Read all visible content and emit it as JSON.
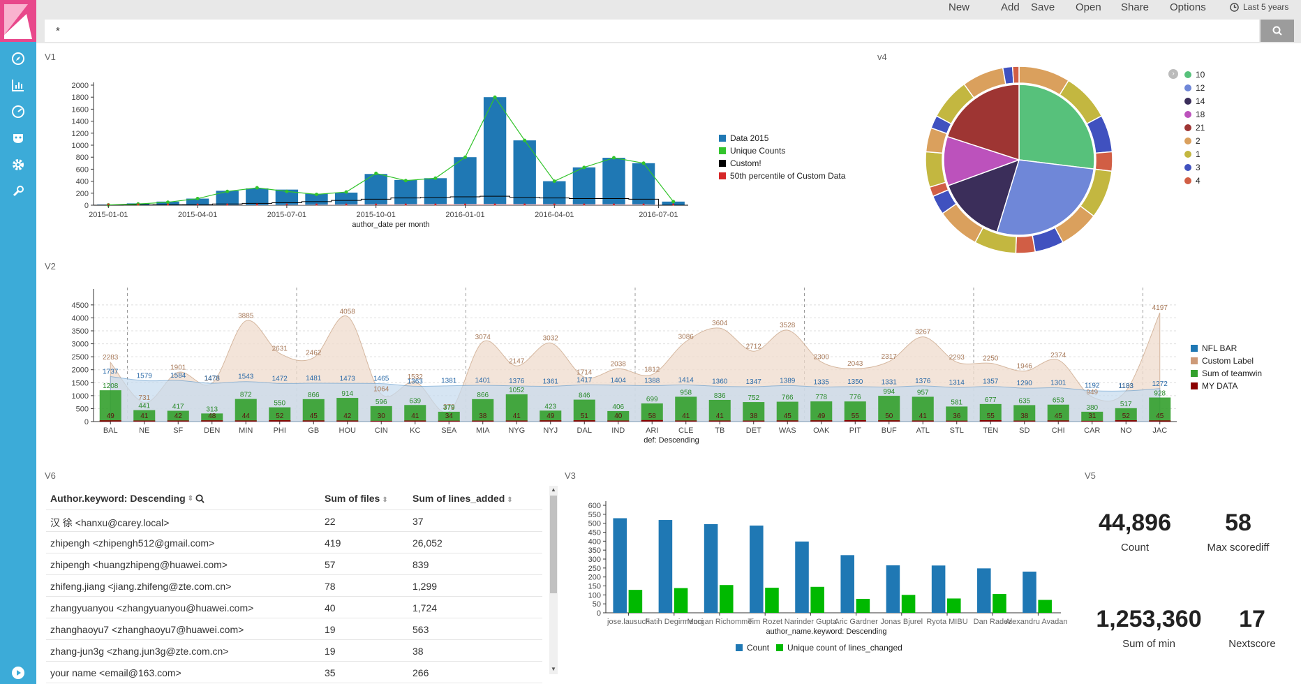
{
  "menu": {
    "new": "New",
    "add": "Add",
    "save": "Save",
    "open": "Open",
    "share": "Share",
    "options": "Options",
    "time": "Last 5 years"
  },
  "search": {
    "value": "*"
  },
  "colors": {
    "sidebar": "#3cabd8",
    "logo": "#e8488b",
    "blue": "#1f78b4",
    "green": "#33a02c",
    "bright_green": "#00b900",
    "tan": "#cd9a78",
    "red": "#d62728"
  },
  "panels": {
    "v1": "V1",
    "v2": "V2",
    "v3": "V3",
    "v4": "v4",
    "v5": "V5",
    "v6": "V6"
  },
  "v1": {
    "xlabel": "author_date per month",
    "ticks": [
      "2015-01-01",
      "2015-04-01",
      "2015-07-01",
      "2015-10-01",
      "2016-01-01",
      "2016-04-01",
      "2016-07-01"
    ],
    "yticks": [
      0,
      200,
      400,
      600,
      800,
      1000,
      1200,
      1400,
      1600,
      1800,
      2000
    ],
    "bars": [
      10,
      30,
      60,
      110,
      240,
      280,
      260,
      190,
      210,
      520,
      420,
      450,
      800,
      1800,
      1080,
      400,
      630,
      790,
      700,
      60
    ],
    "line": [
      5,
      20,
      50,
      110,
      230,
      290,
      230,
      180,
      220,
      530,
      410,
      450,
      800,
      1800,
      1080,
      400,
      630,
      790,
      700,
      60
    ],
    "custom": [
      0,
      5,
      8,
      10,
      20,
      30,
      40,
      60,
      80,
      100,
      120,
      130,
      140,
      150,
      130,
      120,
      110,
      110,
      100,
      0
    ],
    "legend": [
      "Data 2015",
      "Unique Counts",
      "Custom!",
      "50th percentile of Custom Data"
    ]
  },
  "v2": {
    "xlabel": "def: Descending",
    "teams": [
      "BAL",
      "NE",
      "SF",
      "DEN",
      "MIN",
      "PHI",
      "GB",
      "HOU",
      "CIN",
      "KC",
      "SEA",
      "MIA",
      "NYG",
      "NYJ",
      "DAL",
      "IND",
      "ARI",
      "CLE",
      "TB",
      "DET",
      "WAS",
      "OAK",
      "PIT",
      "BUF",
      "ATL",
      "STL",
      "TEN",
      "SD",
      "CHI",
      "CAR",
      "NO",
      "JAC"
    ],
    "yticks": [
      0,
      500,
      1000,
      1500,
      2000,
      2500,
      3000,
      3500,
      4000,
      4500
    ],
    "custom": [
      2283,
      731,
      1901,
      1473,
      3885,
      2631,
      2462,
      4058,
      1064,
      1532,
      379,
      3074,
      2147,
      3032,
      1714,
      2038,
      1812,
      3086,
      3604,
      2712,
      3528,
      2300,
      2043,
      2317,
      3267,
      2293,
      2250,
      1946,
      2374,
      949,
      1183,
      4197
    ],
    "nfl": [
      1737,
      1579,
      1584,
      1478,
      1543,
      1472,
      1481,
      1473,
      1465,
      1363,
      1381,
      1401,
      1376,
      1361,
      1417,
      1404,
      1388,
      1414,
      1360,
      1347,
      1389,
      1335,
      1350,
      1331,
      1376,
      1314,
      1357,
      1290,
      1301,
      1192,
      1183,
      1272
    ],
    "teamwin": [
      1208,
      441,
      417,
      313,
      872,
      550,
      866,
      914,
      596,
      639,
      379,
      866,
      1052,
      423,
      846,
      406,
      699,
      958,
      836,
      752,
      766,
      778,
      776,
      994,
      957,
      581,
      677,
      635,
      653,
      380,
      517,
      928
    ],
    "mydata": [
      49,
      41,
      42,
      48,
      44,
      52,
      45,
      42,
      30,
      41,
      34,
      38,
      41,
      49,
      51,
      40,
      58,
      41,
      41,
      38,
      45,
      49,
      55,
      50,
      41,
      36,
      55,
      38,
      45,
      31,
      52,
      45
    ],
    "legend": [
      "NFL BAR",
      "Custom Label",
      "Sum of teamwin",
      "MY DATA"
    ]
  },
  "v4": {
    "legend": [
      "10",
      "12",
      "14",
      "18",
      "21",
      "2",
      "1",
      "3",
      "4"
    ],
    "legend_colors": [
      "#57c17b",
      "#6f87d8",
      "#3b2e5a",
      "#bc52bc",
      "#9e3533",
      "#daa05d",
      "#c3b740",
      "#4051bf",
      "#d15e45"
    ]
  },
  "v6": {
    "headers": [
      "Author.keyword: Descending",
      "Sum of files",
      "Sum of lines_added"
    ],
    "rows": [
      [
        "汉 徐 <hanxu@carey.local>",
        "22",
        "37"
      ],
      [
        "zhipengh <zhipengh512@gmail.com>",
        "419",
        "26,052"
      ],
      [
        "zhipengh <huangzhipeng@huawei.com>",
        "57",
        "839"
      ],
      [
        "zhifeng.jiang <jiang.zhifeng@zte.com.cn>",
        "78",
        "1,299"
      ],
      [
        "zhangyuanyou <zhangyuanyou@huawei.com>",
        "40",
        "1,724"
      ],
      [
        "zhanghaoyu7 <zhanghaoyu7@huawei.com>",
        "19",
        "563"
      ],
      [
        "zhang-jun3g <zhang.jun3g@zte.com.cn>",
        "19",
        "38"
      ],
      [
        "your name <email@163.com>",
        "35",
        "266"
      ]
    ]
  },
  "v3": {
    "xlabel": "author_name.keyword: Descending",
    "names": [
      "jose.lausuch",
      "Fatih Degirmenci",
      "Morgan Richomme",
      "Tim Rozet",
      "Narinder Gupta",
      "Aric Gardner",
      "Jonas Bjurel",
      "Ryota MIBU",
      "Dan Radez",
      "Alexandru Avadanii"
    ],
    "count": [
      528,
      518,
      495,
      487,
      398,
      322,
      265,
      264,
      248,
      230
    ],
    "unique": [
      128,
      138,
      155,
      140,
      145,
      78,
      100,
      80,
      105,
      72
    ],
    "yticks": [
      0,
      50,
      100,
      150,
      200,
      250,
      300,
      350,
      400,
      450,
      500,
      550,
      600
    ],
    "legend": [
      "Count",
      "Unique count of lines_changed"
    ]
  },
  "v5": {
    "m1": {
      "value": "44,896",
      "label": "Count"
    },
    "m2": {
      "value": "58",
      "label": "Max scorediff"
    },
    "m3": {
      "value": "1,253,360",
      "label": "Sum of min"
    },
    "m4": {
      "value": "17",
      "label": "Nextscore"
    }
  }
}
